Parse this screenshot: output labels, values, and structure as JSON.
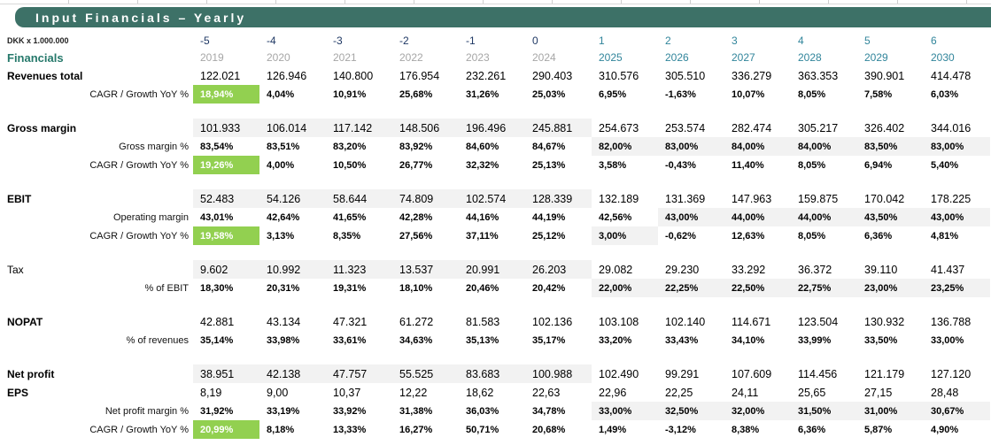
{
  "meta": {
    "title": "Input Financials – Yearly",
    "units_label": "DKK x 1.000.000",
    "section_header": "Financials"
  },
  "colors": {
    "banner_teal": "#3D7167",
    "financials_label_teal": "#26796B",
    "historical_period_navy": "#1F3864",
    "forecast_teal": "#31859B",
    "historical_year_gray": "#A6A6A6",
    "input_cell_gray": "#F2F2F2",
    "highlight_green": "#92D050"
  },
  "columns": {
    "periods": [
      "-5",
      "-4",
      "-3",
      "-2",
      "-1",
      "0",
      "1",
      "2",
      "3",
      "4",
      "5",
      "6"
    ],
    "years": [
      "2019",
      "2020",
      "2021",
      "2022",
      "2023",
      "2024",
      "2025",
      "2026",
      "2027",
      "2028",
      "2029",
      "2030"
    ],
    "historical_count": 6
  },
  "table": {
    "rows": [
      {
        "kind": "main",
        "label": "Revenues total",
        "bold": true,
        "band": false,
        "values": [
          "122.021",
          "126.946",
          "140.800",
          "176.954",
          "232.261",
          "290.403",
          "310.576",
          "305.510",
          "336.279",
          "363.353",
          "390.901",
          "414.478"
        ]
      },
      {
        "kind": "sub",
        "label": "CAGR / Growth YoY %",
        "green_first": true,
        "values": [
          "18,94%",
          "4,04%",
          "10,91%",
          "25,68%",
          "31,26%",
          "25,03%",
          "6,95%",
          "-1,63%",
          "10,07%",
          "8,05%",
          "7,58%",
          "6,03%"
        ]
      },
      {
        "kind": "spacer"
      },
      {
        "kind": "main",
        "label": "Gross margin",
        "bold": true,
        "band": true,
        "values": [
          "101.933",
          "106.014",
          "117.142",
          "148.506",
          "196.496",
          "245.881",
          "254.673",
          "253.574",
          "282.474",
          "305.217",
          "326.402",
          "344.016"
        ]
      },
      {
        "kind": "sub",
        "label": "Gross margin %",
        "gray": [
          6,
          7,
          8,
          9,
          10,
          11
        ],
        "values": [
          "83,54%",
          "83,51%",
          "83,20%",
          "83,92%",
          "84,60%",
          "84,67%",
          "82,00%",
          "83,00%",
          "84,00%",
          "84,00%",
          "83,50%",
          "83,00%"
        ]
      },
      {
        "kind": "sub",
        "label": "CAGR / Growth YoY %",
        "green_first": true,
        "values": [
          "19,26%",
          "4,00%",
          "10,50%",
          "26,77%",
          "32,32%",
          "25,13%",
          "3,58%",
          "-0,43%",
          "11,40%",
          "8,05%",
          "6,94%",
          "5,40%"
        ]
      },
      {
        "kind": "spacer"
      },
      {
        "kind": "main",
        "label": "EBIT",
        "bold": true,
        "band": true,
        "values": [
          "52.483",
          "54.126",
          "58.644",
          "74.809",
          "102.574",
          "128.339",
          "132.189",
          "131.369",
          "147.963",
          "159.875",
          "170.042",
          "178.225"
        ]
      },
      {
        "kind": "sub",
        "label": "Operating margin",
        "gray": [
          7,
          8,
          9,
          10,
          11
        ],
        "values": [
          "43,01%",
          "42,64%",
          "41,65%",
          "42,28%",
          "44,16%",
          "44,19%",
          "42,56%",
          "43,00%",
          "44,00%",
          "44,00%",
          "43,50%",
          "43,00%"
        ]
      },
      {
        "kind": "sub",
        "label": "CAGR / Growth YoY %",
        "green_first": true,
        "gray": [
          6
        ],
        "values": [
          "19,58%",
          "3,13%",
          "8,35%",
          "27,56%",
          "37,11%",
          "25,12%",
          "3,00%",
          "-0,62%",
          "12,63%",
          "8,05%",
          "6,36%",
          "4,81%"
        ]
      },
      {
        "kind": "spacer"
      },
      {
        "kind": "main",
        "label": "Tax",
        "bold": false,
        "band": true,
        "values": [
          "9.602",
          "10.992",
          "11.323",
          "13.537",
          "20.991",
          "26.203",
          "29.082",
          "29.230",
          "33.292",
          "36.372",
          "39.110",
          "41.437"
        ]
      },
      {
        "kind": "sub",
        "label": "% of EBIT",
        "gray": [
          6,
          7,
          8,
          9,
          10,
          11
        ],
        "values": [
          "18,30%",
          "20,31%",
          "19,31%",
          "18,10%",
          "20,46%",
          "20,42%",
          "22,00%",
          "22,25%",
          "22,50%",
          "22,75%",
          "23,00%",
          "23,25%"
        ]
      },
      {
        "kind": "spacer"
      },
      {
        "kind": "main",
        "label": "NOPAT",
        "bold": true,
        "band": false,
        "values": [
          "42.881",
          "43.134",
          "47.321",
          "61.272",
          "81.583",
          "102.136",
          "103.108",
          "102.140",
          "114.671",
          "123.504",
          "130.932",
          "136.788"
        ]
      },
      {
        "kind": "sub",
        "label": "% of revenues",
        "values": [
          "35,14%",
          "33,98%",
          "33,61%",
          "34,63%",
          "35,13%",
          "35,17%",
          "33,20%",
          "33,43%",
          "34,10%",
          "33,99%",
          "33,50%",
          "33,00%"
        ]
      },
      {
        "kind": "spacer"
      },
      {
        "kind": "main",
        "label": "Net profit",
        "bold": true,
        "band": true,
        "values": [
          "38.951",
          "42.138",
          "47.757",
          "55.525",
          "83.683",
          "100.988",
          "102.490",
          "99.291",
          "107.609",
          "114.456",
          "121.179",
          "127.120"
        ]
      },
      {
        "kind": "main",
        "label": "EPS",
        "bold": true,
        "band": false,
        "values": [
          "8,19",
          "9,00",
          "10,37",
          "12,22",
          "18,62",
          "22,63",
          "22,96",
          "22,25",
          "24,11",
          "25,65",
          "27,15",
          "28,48"
        ]
      },
      {
        "kind": "sub",
        "label": "Net profit margin %",
        "gray": [
          6,
          7,
          8,
          9,
          10,
          11
        ],
        "values": [
          "31,92%",
          "33,19%",
          "33,92%",
          "31,38%",
          "36,03%",
          "34,78%",
          "33,00%",
          "32,50%",
          "32,00%",
          "31,50%",
          "31,00%",
          "30,67%"
        ]
      },
      {
        "kind": "sub",
        "label": "CAGR / Growth YoY %",
        "green_first": true,
        "values": [
          "20,99%",
          "8,18%",
          "13,33%",
          "16,27%",
          "50,71%",
          "20,68%",
          "1,49%",
          "-3,12%",
          "8,38%",
          "6,36%",
          "5,87%",
          "4,90%"
        ]
      }
    ]
  }
}
